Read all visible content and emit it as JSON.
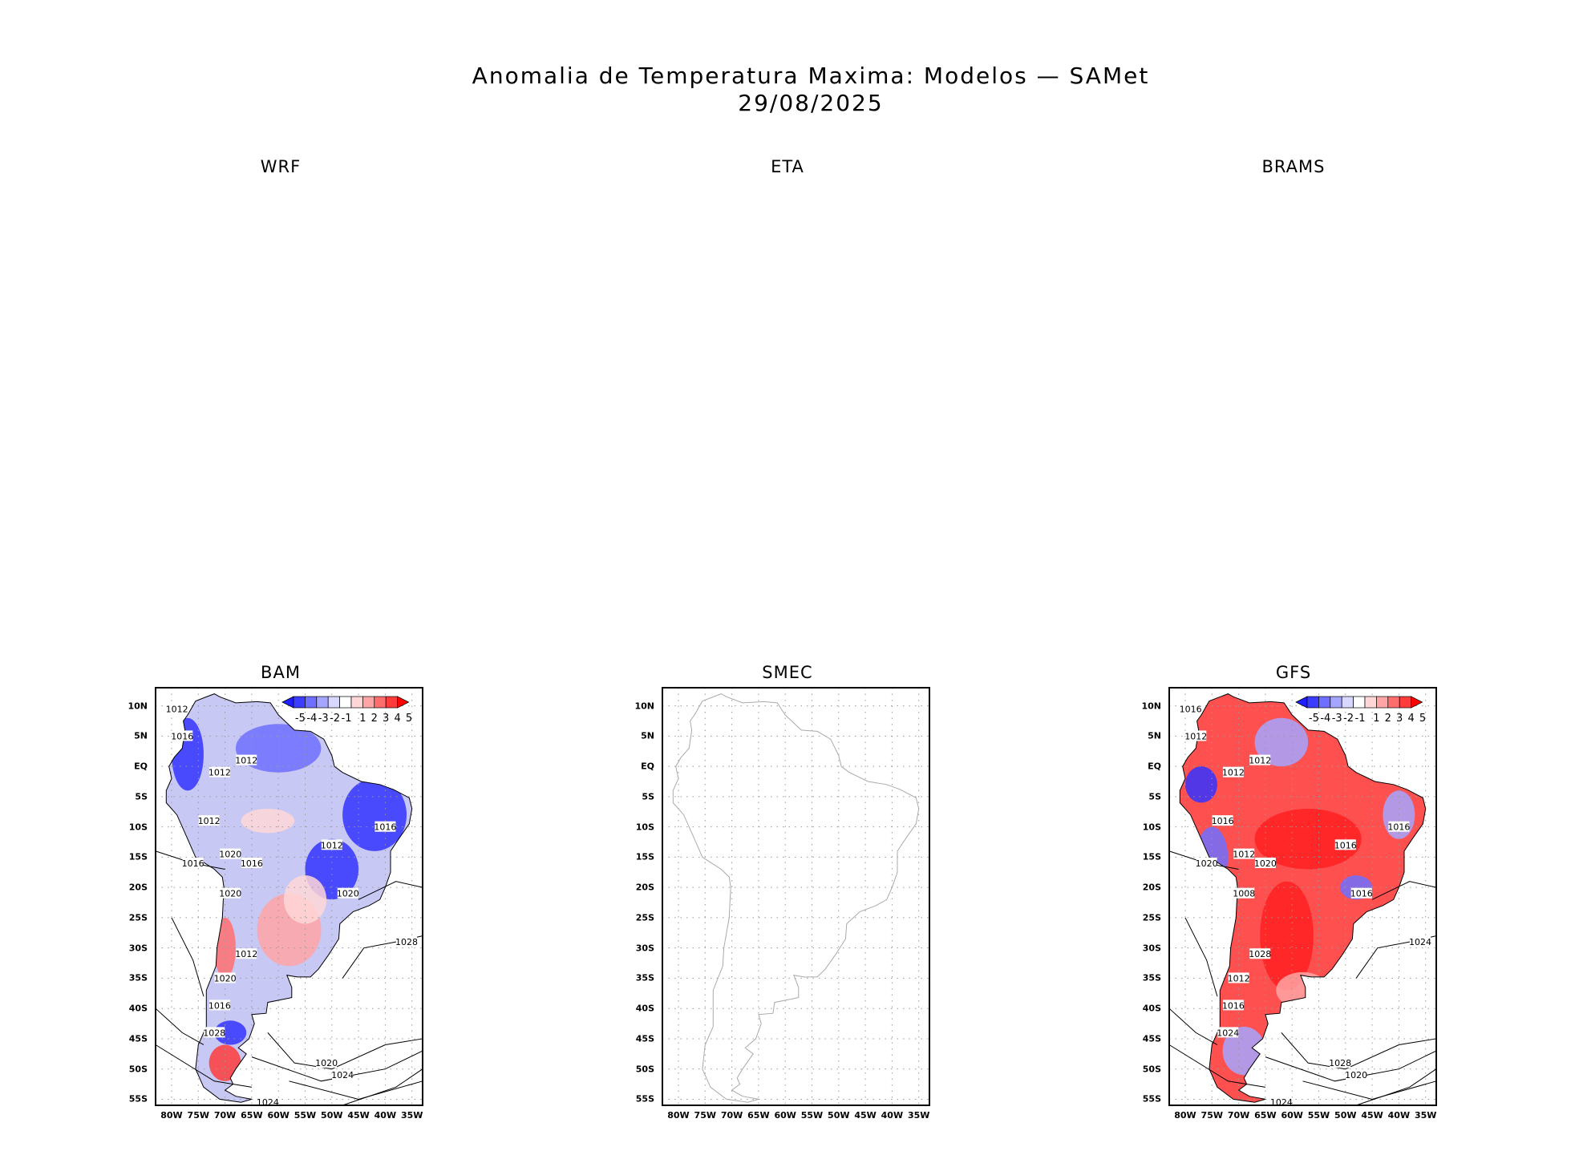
{
  "title": {
    "line1": "Anomalia de Temperatura Maxima: Modelos — SAMet",
    "line2": "29/08/2025"
  },
  "panels": [
    {
      "id": "wrf",
      "label": "WRF",
      "has_map": false
    },
    {
      "id": "eta",
      "label": "ETA",
      "has_map": false
    },
    {
      "id": "brams",
      "label": "BRAMS",
      "has_map": false
    },
    {
      "id": "bam",
      "label": "BAM",
      "has_map": true,
      "legend": true,
      "base": "#c8c8f5",
      "contour_labels": [
        "1012",
        "1016",
        "1012",
        "1012",
        "1012",
        "1016",
        "1012",
        "1016",
        "1020",
        "1020",
        "1016",
        "1020",
        "1028",
        "1012",
        "1020",
        "1016",
        "1028",
        "1020",
        "1024",
        "1024"
      ]
    },
    {
      "id": "smec",
      "label": "SMEC",
      "has_map": true,
      "legend": false,
      "contour_labels": []
    },
    {
      "id": "gfs",
      "label": "GFS",
      "has_map": true,
      "legend": true,
      "base": "#ff5050",
      "contour_labels": [
        "1016",
        "1012",
        "1012",
        "1012",
        "1016",
        "1020",
        "1016",
        "1016",
        "1012",
        "1008",
        "1020",
        "1016",
        "1024",
        "1028",
        "1012",
        "1016",
        "1024",
        "1028",
        "1020",
        "1024"
      ]
    }
  ],
  "chart_data": {
    "type": "heatmap",
    "title": "Anomalia de Temperatura Maxima: Modelos — SAMet",
    "subtitle": "29/08/2025",
    "colorbar": {
      "levels": [
        "-5",
        "-4",
        "-3",
        "-2",
        "-1",
        "1",
        "2",
        "3",
        "4",
        "5"
      ],
      "colors": [
        "#1e1eff",
        "#3c3cff",
        "#6e6eff",
        "#a5a5ff",
        "#d7d7ff",
        "#ffffff",
        "#ffd7d7",
        "#ffa5a5",
        "#ff6e6e",
        "#ff3c3c",
        "#ff0000"
      ]
    },
    "lat_ticks": [
      "10N",
      "5N",
      "EQ",
      "5S",
      "10S",
      "15S",
      "20S",
      "25S",
      "30S",
      "35S",
      "40S",
      "45S",
      "50S",
      "55S"
    ],
    "lon_ticks": [
      "80W",
      "75W",
      "70W",
      "65W",
      "60W",
      "55W",
      "50W",
      "45W",
      "40W",
      "35W"
    ],
    "lon_range": [
      -83,
      -33
    ],
    "lat_range": [
      -56,
      13
    ]
  }
}
